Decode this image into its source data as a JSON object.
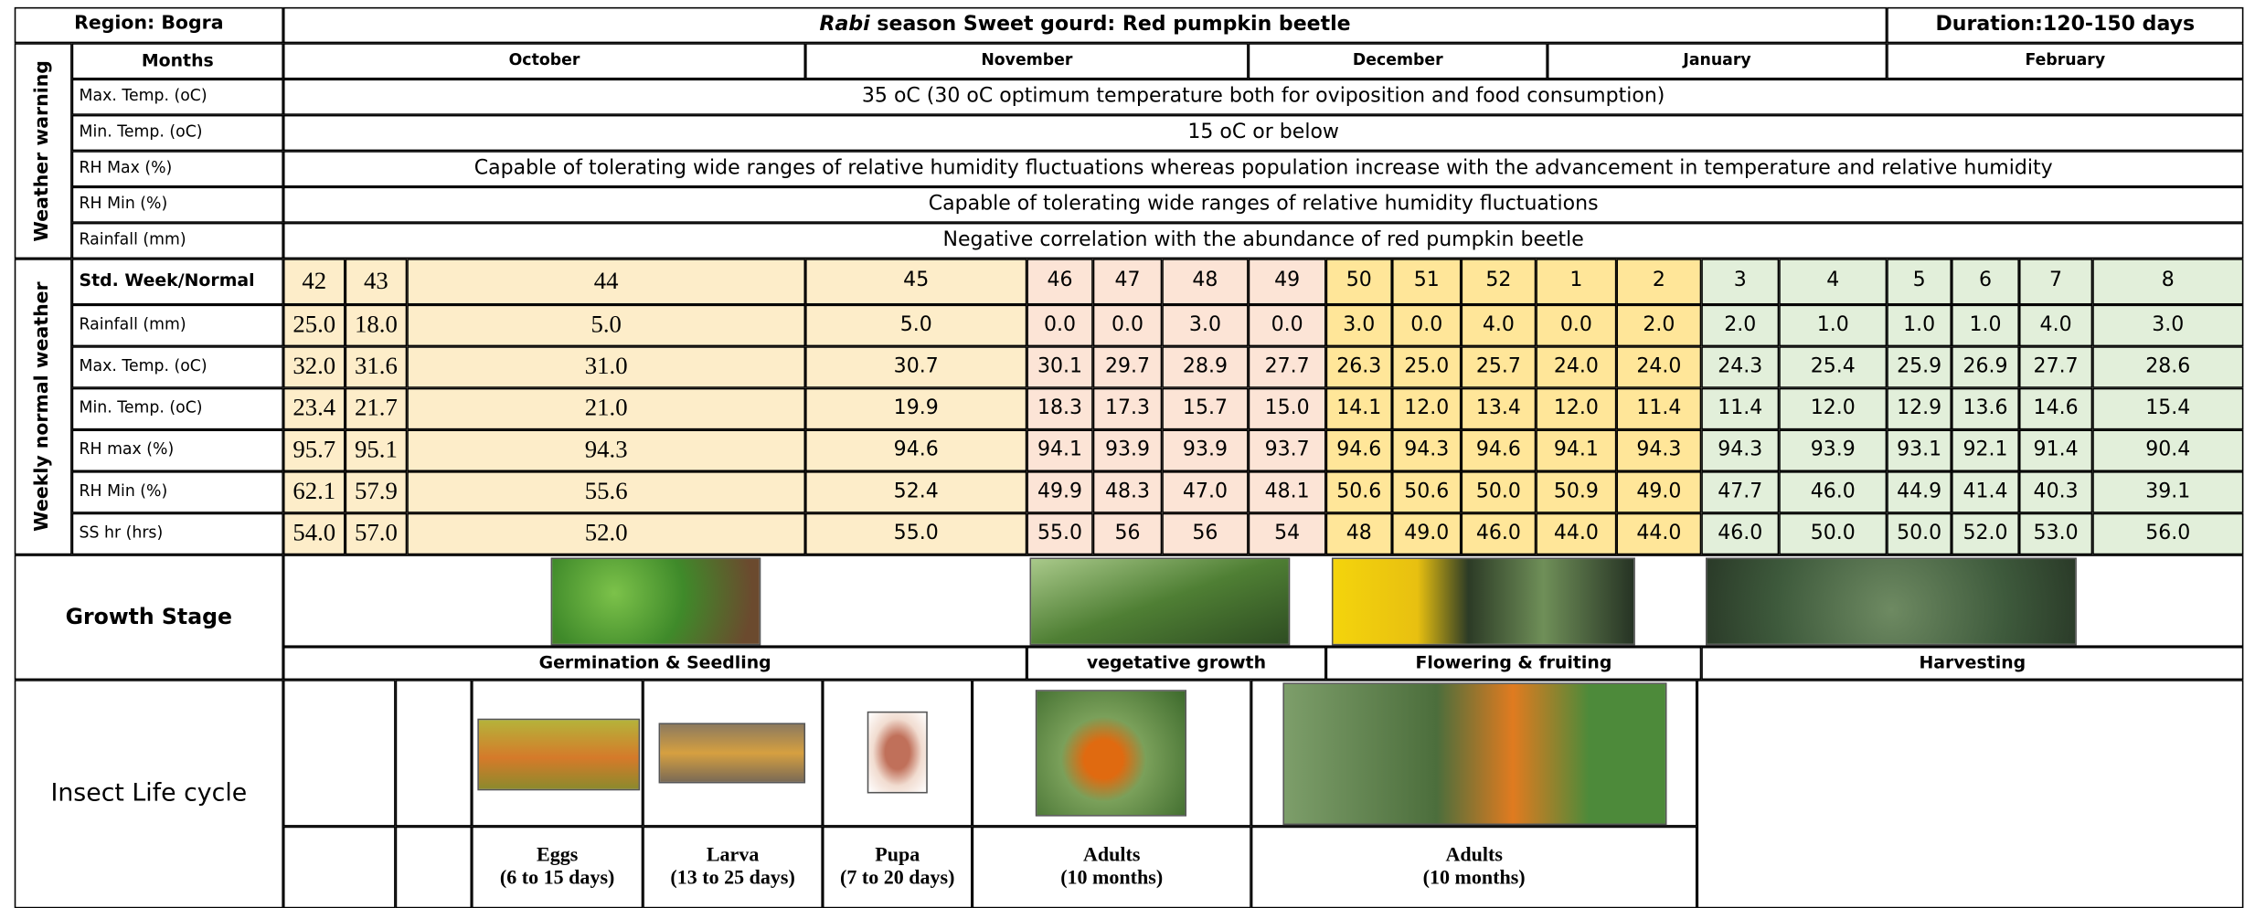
{
  "header": {
    "region": "Region: Bogra",
    "title_italic": "Rabi",
    "title_rest": " season Sweet gourd: Red pumpkin beetle",
    "duration": "Duration:120-150 days"
  },
  "months": {
    "label": "Months",
    "names": [
      "October",
      "November",
      "December",
      "January",
      "February"
    ]
  },
  "weather_warning": {
    "label": "Weather warning",
    "rows": [
      {
        "param": "Max. Temp. (oC)",
        "text": "35 oC (30 oC optimum temperature both for oviposition and food consumption)"
      },
      {
        "param": "Min. Temp. (oC)",
        "text": "15 oC or below"
      },
      {
        "param": "RH Max (%)",
        "text": "Capable of tolerating wide ranges of relative humidity fluctuations whereas population increase with the advancement in temperature and relative humidity"
      },
      {
        "param": "RH Min (%)",
        "text": "Capable of tolerating wide ranges of relative humidity fluctuations"
      },
      {
        "param": "Rainfall (mm)",
        "text": "Negative correlation with the abundance of red pumpkin beetle"
      }
    ]
  },
  "weekly": {
    "label": "Weekly normal weather",
    "rows": [
      {
        "param": "Std. Week/Normal",
        "values": [
          "42",
          "43",
          "44",
          "45",
          "46",
          "47",
          "48",
          "49",
          "50",
          "51",
          "52",
          "1",
          "2",
          "3",
          "4",
          "5",
          "6",
          "7",
          "8"
        ]
      },
      {
        "param": "Rainfall (mm)",
        "values": [
          "25.0",
          "18.0",
          "5.0",
          "5.0",
          "0.0",
          "0.0",
          "3.0",
          "0.0",
          "3.0",
          "0.0",
          "4.0",
          "0.0",
          "2.0",
          "2.0",
          "1.0",
          "1.0",
          "1.0",
          "4.0",
          "3.0"
        ]
      },
      {
        "param": "Max. Temp. (oC)",
        "values": [
          "32.0",
          "31.6",
          "31.0",
          "30.7",
          "30.1",
          "29.7",
          "28.9",
          "27.7",
          "26.3",
          "25.0",
          "25.7",
          "24.0",
          "24.0",
          "24.3",
          "25.4",
          "25.9",
          "26.9",
          "27.7",
          "28.6"
        ]
      },
      {
        "param": "Min. Temp. (oC)",
        "values": [
          "23.4",
          "21.7",
          "21.0",
          "19.9",
          "18.3",
          "17.3",
          "15.7",
          "15.0",
          "14.1",
          "12.0",
          "13.4",
          "12.0",
          "11.4",
          "11.4",
          "12.0",
          "12.9",
          "13.6",
          "14.6",
          "15.4"
        ]
      },
      {
        "param": "RH max (%)",
        "values": [
          "95.7",
          "95.1",
          "94.3",
          "94.6",
          "94.1",
          "93.9",
          "93.9",
          "93.7",
          "94.6",
          "94.3",
          "94.6",
          "94.1",
          "94.3",
          "94.3",
          "93.9",
          "93.1",
          "92.1",
          "91.4",
          "90.4"
        ]
      },
      {
        "param": "RH Min (%)",
        "values": [
          "62.1",
          "57.9",
          "55.6",
          "52.4",
          "49.9",
          "48.3",
          "47.0",
          "48.1",
          "50.6",
          "50.6",
          "50.0",
          "50.9",
          "49.0",
          "47.7",
          "46.0",
          "44.9",
          "41.4",
          "40.3",
          "39.1"
        ]
      },
      {
        "param": "SS hr (hrs)",
        "values": [
          "54.0",
          "57.0",
          "52.0",
          "55.0",
          "55.0",
          "56",
          "56",
          "54",
          "48",
          "49.0",
          "46.0",
          "44.0",
          "44.0",
          "46.0",
          "50.0",
          "50.0",
          "52.0",
          "53.0",
          "56.0"
        ]
      }
    ]
  },
  "growth_stage": {
    "label": "Growth Stage",
    "stages": [
      "Germination & Seedling",
      "vegetative growth",
      "Flowering & fruiting",
      "Harvesting"
    ]
  },
  "insect": {
    "label": "Insect Life cycle",
    "stages": [
      {
        "name": "Eggs",
        "duration": "(6 to 15 days)"
      },
      {
        "name": "Larva",
        "duration": "(13 to 25 days)"
      },
      {
        "name": "Pupa",
        "duration": "(7 to 20 days)"
      },
      {
        "name": "Adults",
        "duration": "(10 months)"
      },
      {
        "name": "Adults",
        "duration": "(10 months)"
      }
    ]
  }
}
